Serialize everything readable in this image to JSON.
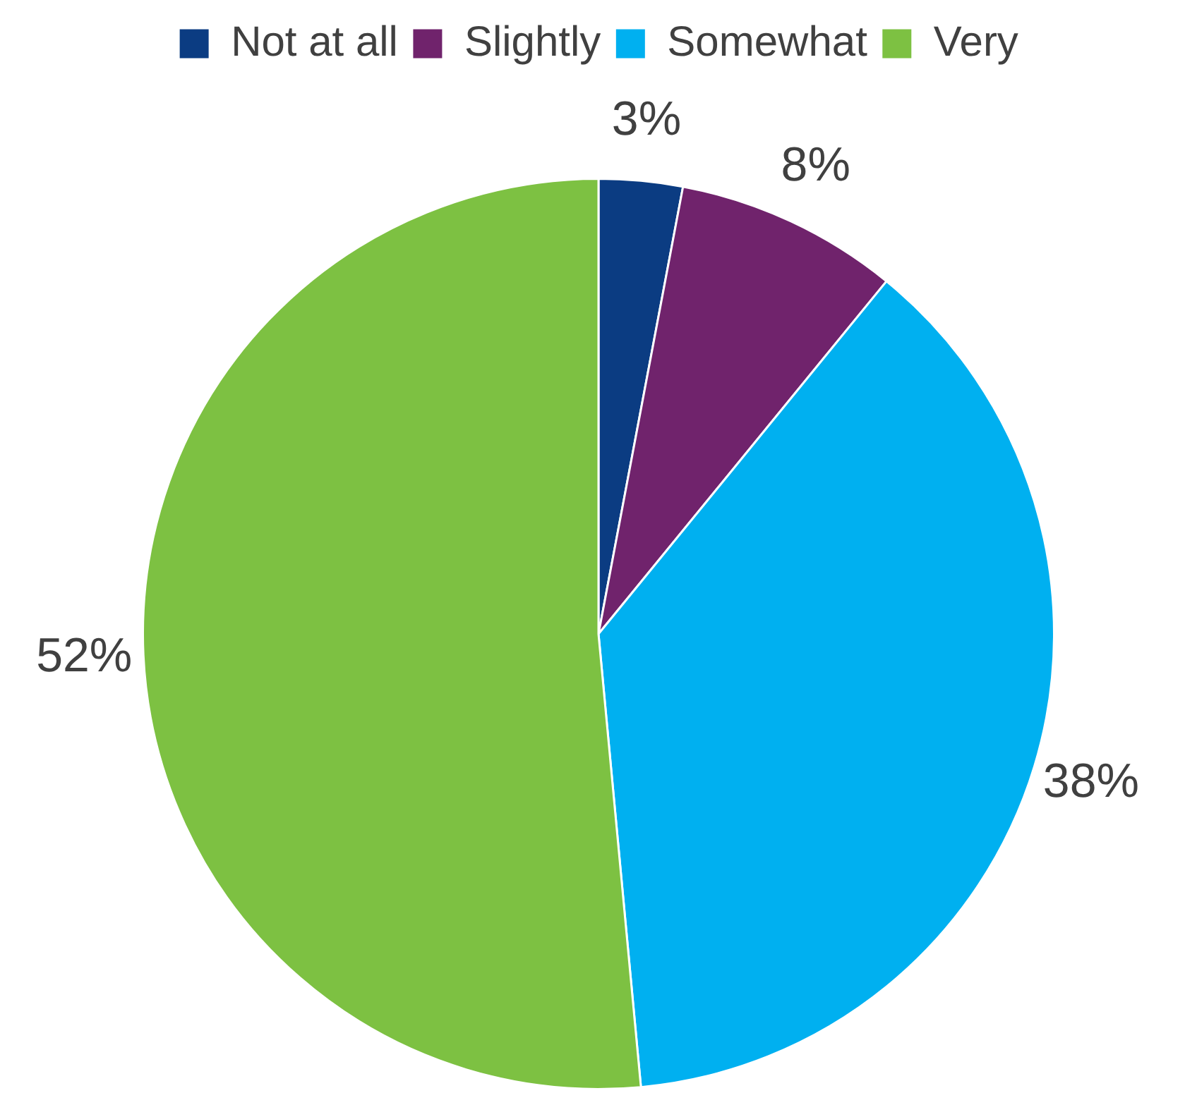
{
  "chart_data": {
    "type": "pie",
    "categories": [
      "Not at all",
      "Slightly",
      "Somewhat",
      "Very"
    ],
    "values": [
      3,
      8,
      38,
      52
    ],
    "colors": [
      "#0b3c82",
      "#70236c",
      "#00b0f0",
      "#7dc142"
    ],
    "value_labels": [
      "3%",
      "8%",
      "38%",
      "52%"
    ],
    "legend": "top"
  }
}
